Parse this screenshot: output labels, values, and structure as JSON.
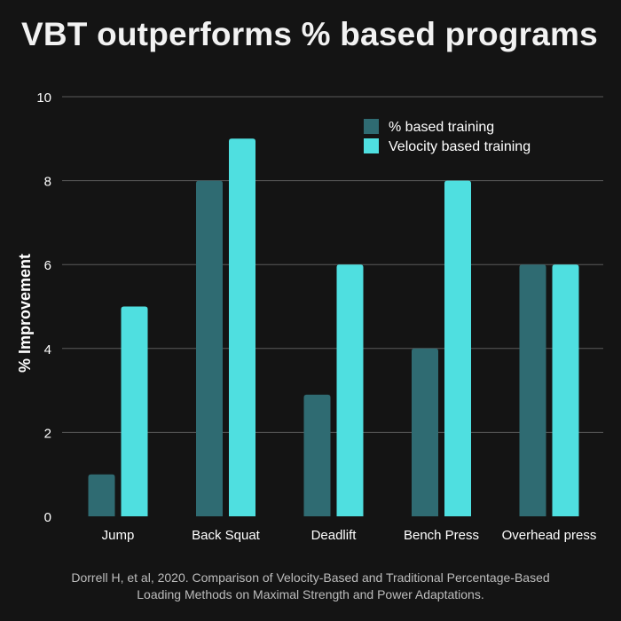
{
  "title": "VBT outperforms % based programs",
  "footer": {
    "line1": "Dorrell H, et al, 2020. Comparison of Velocity-Based and Traditional Percentage-Based",
    "line2": "Loading Methods on Maximal Strength and Power Adaptations."
  },
  "colors": {
    "background": "#141414",
    "percent_based": "#2f6b72",
    "velocity_based": "#4fdfe0",
    "gridline": "#5a5a5a"
  },
  "chart_data": {
    "type": "bar",
    "title": "VBT outperforms % based programs",
    "xlabel": "",
    "ylabel": "% Improvement",
    "ylim": [
      0,
      10
    ],
    "yticks": [
      0,
      2,
      4,
      6,
      8,
      10
    ],
    "grid": "horizontal",
    "legend_position": "top-right",
    "categories": [
      "Jump",
      "Back Squat",
      "Deadlift",
      "Bench Press",
      "Overhead press"
    ],
    "series": [
      {
        "name": "% based training",
        "color": "#2f6b72",
        "values": [
          1,
          8,
          2.9,
          4,
          6
        ]
      },
      {
        "name": "Velocity based training",
        "color": "#4fdfe0",
        "values": [
          5,
          9,
          6,
          8,
          6
        ]
      }
    ]
  }
}
